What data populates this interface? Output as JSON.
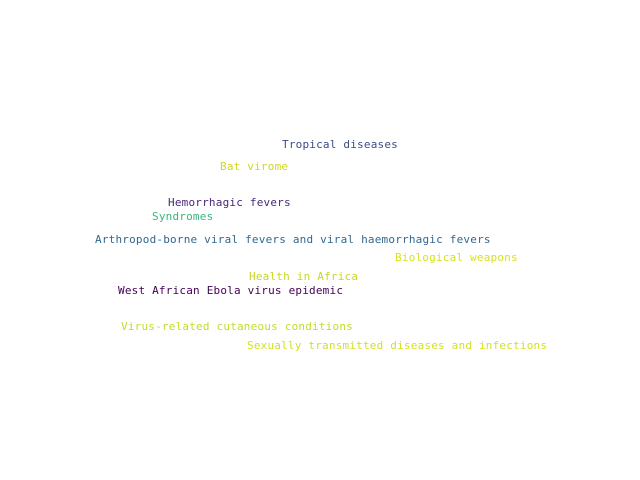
{
  "words": [
    {
      "text": "Tropical diseases",
      "color": "#3e4a89"
    },
    {
      "text": "Bat virome",
      "color": "#d2d61e"
    },
    {
      "text": "Hemorrhagic fevers",
      "color": "#482878"
    },
    {
      "text": "Syndromes",
      "color": "#35b779"
    },
    {
      "text": "Arthropod-borne viral fevers and viral haemorrhagic fevers",
      "color": "#31688e"
    },
    {
      "text": "Biological weapons",
      "color": "#d8e219"
    },
    {
      "text": "Health in Africa",
      "color": "#c8d62a"
    },
    {
      "text": "West African Ebola virus epidemic",
      "color": "#440154"
    },
    {
      "text": "Virus-related cutaneous conditions",
      "color": "#c2dc2a"
    },
    {
      "text": "Sexually transmitted diseases and infections",
      "color": "#d5e021"
    }
  ]
}
